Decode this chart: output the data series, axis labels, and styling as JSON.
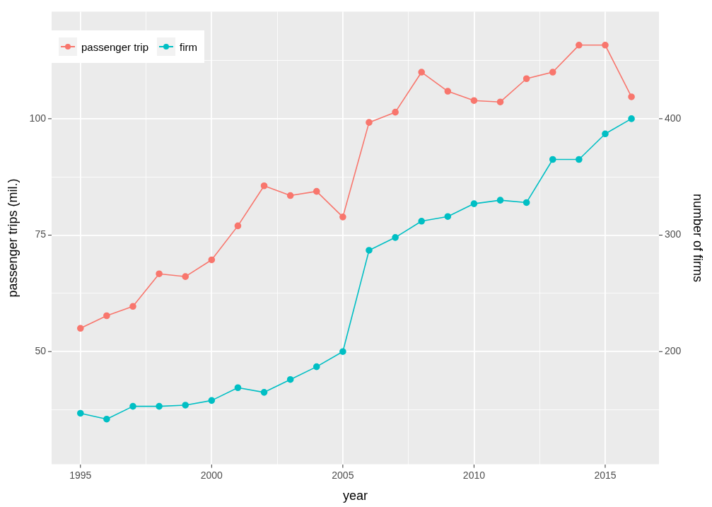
{
  "chart_data": {
    "type": "line",
    "xlabel": "year",
    "ylabel": "passenger trips (mil.)",
    "y2label": "number of firms",
    "x": [
      1995,
      1996,
      1997,
      1998,
      1999,
      2000,
      2001,
      2002,
      2003,
      2004,
      2005,
      2006,
      2007,
      2008,
      2009,
      2010,
      2011,
      2012,
      2013,
      2014,
      2015,
      2016
    ],
    "series": [
      {
        "name": "passenger trip",
        "color": "#f8766d",
        "values": [
          55.0,
          57.7,
          59.7,
          66.7,
          66.1,
          69.7,
          77.0,
          85.6,
          83.5,
          84.4,
          78.9,
          99.2,
          101.4,
          110.0,
          105.9,
          103.9,
          103.6,
          108.6,
          110.0,
          115.8,
          115.8,
          104.7
        ]
      },
      {
        "name": "firm",
        "color": "#00bfc4",
        "axis": "y2",
        "values": [
          147,
          142,
          153,
          153,
          154,
          158,
          169,
          165,
          176,
          187,
          200,
          287,
          298,
          312,
          316,
          327,
          330,
          328,
          365,
          365,
          387,
          400
        ]
      }
    ],
    "xlim": [
      1993.9,
      2017.05
    ],
    "xticks": [
      1995,
      {
        "value": 1997.5,
        "label": null
      },
      2000,
      {
        "value": 2002.5,
        "label": null
      },
      2005,
      {
        "value": 2007.5,
        "label": null
      },
      2010,
      {
        "value": 2012.5,
        "label": null
      },
      2015
    ],
    "ylim": [
      25.8,
      123
    ],
    "yticks": [
      {
        "value": 37.5,
        "label": null
      },
      50,
      {
        "value": 62.5,
        "label": null
      },
      75,
      {
        "value": 87.5,
        "label": null
      },
      100,
      {
        "value": 112.5,
        "label": null
      }
    ],
    "y2lim": [
      103.2,
      492
    ],
    "y2ticks": [
      200,
      300,
      400
    ],
    "grid": true,
    "legend": "top left",
    "marker": "circle",
    "line_style": "solid"
  }
}
